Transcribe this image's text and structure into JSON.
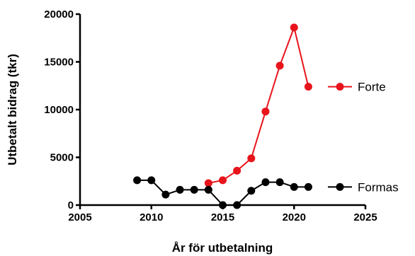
{
  "chart_data": {
    "type": "line",
    "title": "",
    "xlabel": "År för utbetalning",
    "ylabel": "Utbetalt bidrag (tkr)",
    "xlim": [
      2005,
      2025
    ],
    "ylim": [
      0,
      20000
    ],
    "xticks": [
      "2005",
      "2010",
      "2015",
      "2020",
      "2025"
    ],
    "yticks": [
      "0",
      "5000",
      "10000",
      "15000",
      "20000"
    ],
    "grid": false,
    "legend": "right",
    "series": [
      {
        "name": "Forte",
        "color": "#e8141b",
        "x": [
          2014,
          2015,
          2016,
          2017,
          2018,
          2019,
          2020,
          2021
        ],
        "values": [
          2300,
          2600,
          3600,
          4900,
          9800,
          14600,
          18600,
          12400
        ]
      },
      {
        "name": "Formas",
        "color": "#000000",
        "x": [
          2009,
          2010,
          2011,
          2012,
          2013,
          2014,
          2015,
          2016,
          2017,
          2018,
          2019,
          2020,
          2021
        ],
        "values": [
          2600,
          2600,
          1100,
          1600,
          1600,
          1600,
          0,
          0,
          1500,
          2400,
          2400,
          1900,
          1900
        ]
      }
    ]
  }
}
